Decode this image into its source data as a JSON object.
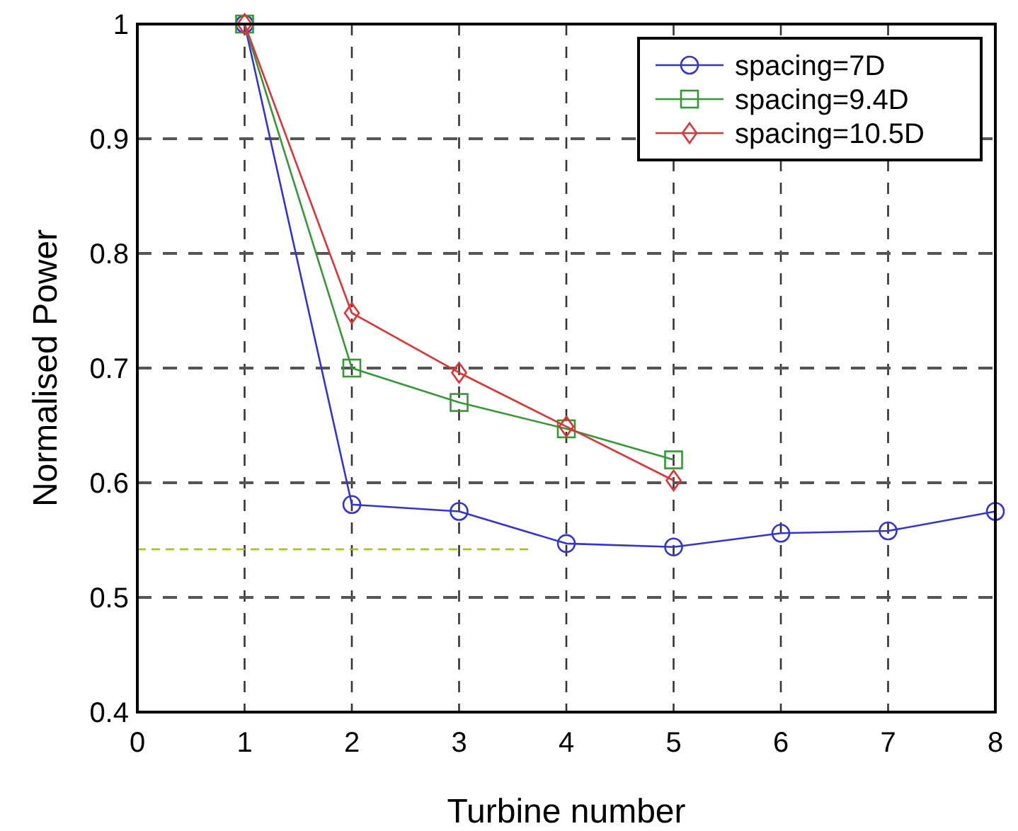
{
  "chart_data": {
    "type": "line",
    "xlabel": "Turbine number",
    "ylabel": "Normalised Power",
    "xlim": [
      0,
      8
    ],
    "xticks": [
      0,
      1,
      2,
      3,
      4,
      5,
      6,
      7,
      8
    ],
    "ylim": [
      0.4,
      1
    ],
    "yticks": [
      0.4,
      0.5,
      0.6,
      0.7,
      0.8,
      0.9,
      1
    ],
    "grid": true,
    "legend": "top right",
    "series": [
      {
        "name": "spacing=7D",
        "color": "#3333dd",
        "marker": "circle",
        "x": [
          1,
          2,
          3,
          4,
          5,
          6,
          7,
          8
        ],
        "values": [
          1,
          0.581,
          0.575,
          0.547,
          0.544,
          0.556,
          0.558,
          0.575
        ]
      },
      {
        "name": "spacing=9.4D",
        "color": "#339933",
        "marker": "square",
        "x": [
          1,
          2,
          3,
          4,
          5
        ],
        "values": [
          1,
          0.7,
          0.67,
          0.647,
          0.62
        ]
      },
      {
        "name": "spacing=10.5D",
        "color": "#e03333",
        "marker": "diamond",
        "x": [
          1,
          2,
          3,
          4,
          5
        ],
        "values": [
          1,
          0.748,
          0.696,
          0.649,
          0.602
        ]
      },
      {
        "color": "#99cc00",
        "marker": "none",
        "line_style": "dashed",
        "x": [
          0,
          3.66
        ],
        "values": [
          0.542,
          0.542
        ]
      }
    ]
  }
}
